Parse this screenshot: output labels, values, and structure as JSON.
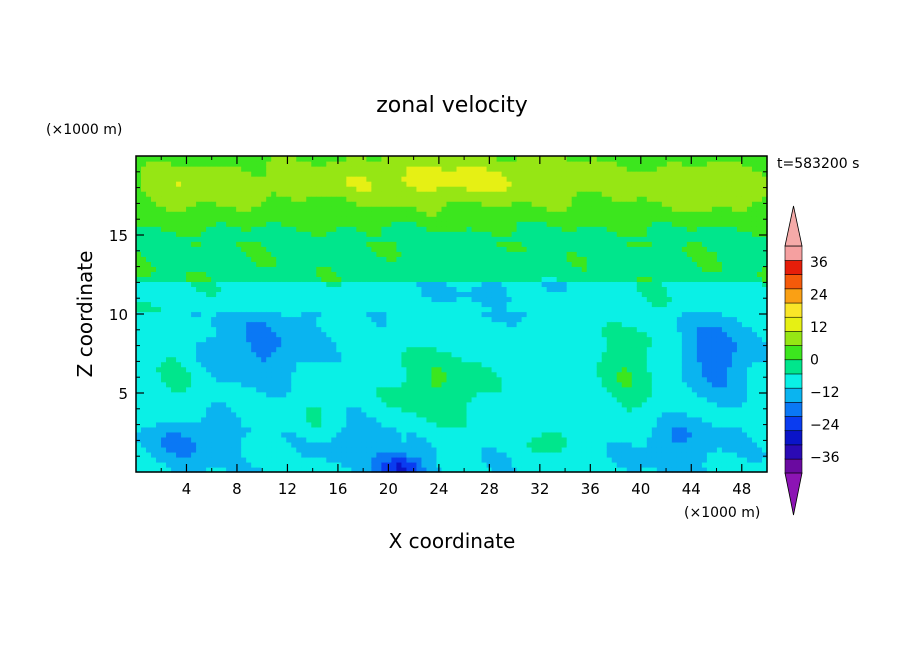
{
  "chart_data": {
    "type": "heatmap",
    "title": "zonal velocity",
    "xlabel": "X coordinate",
    "ylabel": "Z coordinate",
    "x_units": "(×1000 m)",
    "y_units": "(×1000 m)",
    "time_label": "t=583200 s",
    "xlim": [
      0,
      50
    ],
    "ylim": [
      0,
      20
    ],
    "x_ticks": [
      4,
      8,
      12,
      16,
      20,
      24,
      28,
      32,
      36,
      40,
      44,
      48
    ],
    "y_ticks": [
      5,
      10,
      15
    ],
    "grid": false,
    "legend": "colorbar-right",
    "colorbar": {
      "tick_labels": [
        "36",
        "24",
        "12",
        "0",
        "−12",
        "−24",
        "−36"
      ],
      "tick_values": [
        36,
        24,
        12,
        0,
        -12,
        -24,
        -36
      ],
      "levels": [
        -42,
        -36,
        -30,
        -24,
        -18,
        -12,
        -6,
        0,
        6,
        12,
        18,
        24,
        30,
        36,
        42
      ],
      "colors": [
        "#6a0aa0",
        "#2b0ab4",
        "#0a14c8",
        "#0a3cf0",
        "#0a78f5",
        "#0ab4f0",
        "#0af0e6",
        "#00e68c",
        "#3ce61e",
        "#96e614",
        "#e6f014",
        "#fae628",
        "#faa014",
        "#f55a0a",
        "#e61e0a",
        "#f5a0a0"
      ],
      "under_color": "#8c14b4",
      "over_color": "#f5aaa8"
    },
    "blobs": [
      {
        "x": 25,
        "z": 18.5,
        "amp": 12,
        "sx": 14,
        "sz": 1.6
      },
      {
        "x": 4,
        "z": 18,
        "amp": 8,
        "sx": 6,
        "sz": 1.5
      },
      {
        "x": 46,
        "z": 18,
        "amp": 8,
        "sx": 6,
        "sz": 1.5
      },
      {
        "x": 10,
        "z": 8,
        "amp": -9,
        "sx": 4,
        "sz": 2.5
      },
      {
        "x": 21,
        "z": 0.3,
        "amp": -20,
        "sx": 1.8,
        "sz": 0.9
      },
      {
        "x": 24,
        "z": 5.5,
        "amp": 10,
        "sx": 4,
        "sz": 2.5
      },
      {
        "x": 39,
        "z": 6.5,
        "amp": 9,
        "sx": 2.5,
        "sz": 3
      },
      {
        "x": 46,
        "z": 7.5,
        "amp": -12,
        "sx": 2.5,
        "sz": 2.5
      },
      {
        "x": 33,
        "z": 2,
        "amp": 8,
        "sx": 2,
        "sz": 1.2
      },
      {
        "x": 3,
        "z": 6,
        "amp": 5,
        "sx": 2,
        "sz": 2
      },
      {
        "x": 28,
        "z": 11.5,
        "amp": -6,
        "sx": 8,
        "sz": 1.5
      },
      {
        "x": 4,
        "z": 2,
        "amp": -8,
        "sx": 3,
        "sz": 1.5
      },
      {
        "x": 43,
        "z": 2,
        "amp": -7,
        "sx": 3,
        "sz": 1.5
      },
      {
        "x": 18,
        "z": 2,
        "amp": -6,
        "sx": 3,
        "sz": 1.5
      },
      {
        "x": 14,
        "z": 4,
        "amp": 4,
        "sx": 2,
        "sz": 2
      }
    ]
  }
}
